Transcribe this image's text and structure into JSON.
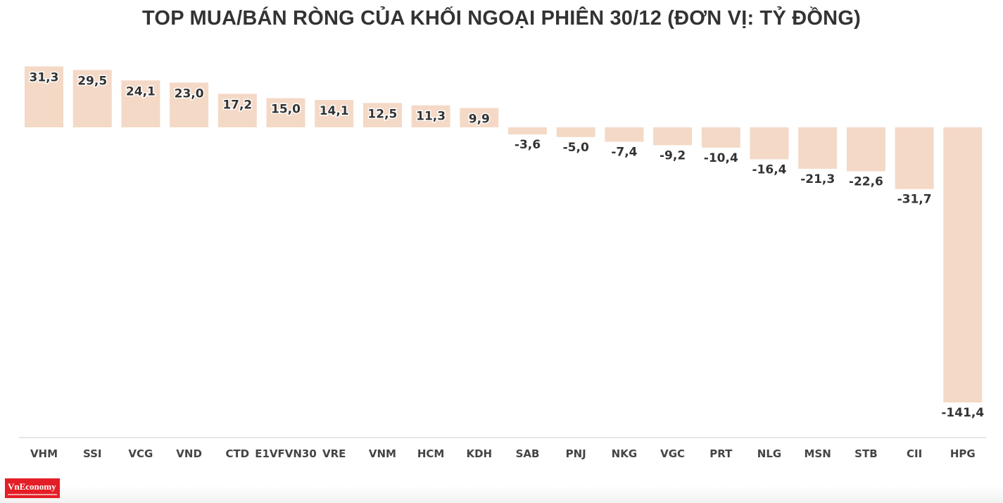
{
  "chart_data": {
    "type": "bar",
    "title": "TOP MUA/BÁN RÒNG CỦA KHỐI NGOẠI PHIÊN 30/12 (ĐƠN VỊ: TỶ ĐỒNG)",
    "categories": [
      "VHM",
      "SSI",
      "VCG",
      "VND",
      "CTD",
      "E1VFVN30",
      "VRE",
      "VNM",
      "HCM",
      "KDH",
      "SAB",
      "PNJ",
      "NKG",
      "VGC",
      "PRT",
      "NLG",
      "MSN",
      "STB",
      "CII",
      "HPG"
    ],
    "values": [
      31.3,
      29.5,
      24.1,
      23.0,
      17.2,
      15.0,
      14.1,
      12.5,
      11.3,
      9.9,
      -3.6,
      -5.0,
      -7.4,
      -9.2,
      -10.4,
      -16.4,
      -21.3,
      -22.6,
      -31.7,
      -141.4
    ],
    "value_labels": [
      "31,3",
      "29,5",
      "24,1",
      "23,0",
      "17,2",
      "15,0",
      "14,1",
      "12,5",
      "11,3",
      "9,9",
      "-3,6",
      "-5,0",
      "-7,4",
      "-9,2",
      "-10,4",
      "-16,4",
      "-21,3",
      "-22,6",
      "-31,7",
      "-141,4"
    ],
    "xlabel": "",
    "ylabel": "",
    "ylim": [
      -160,
      35
    ],
    "grid": false,
    "legend": "none",
    "bar_color": "#f4d9c6",
    "text_color": "#333333",
    "axis_color": "#cccccc"
  },
  "logo": {
    "text": "VnEconomy",
    "color": "#e41e26"
  }
}
